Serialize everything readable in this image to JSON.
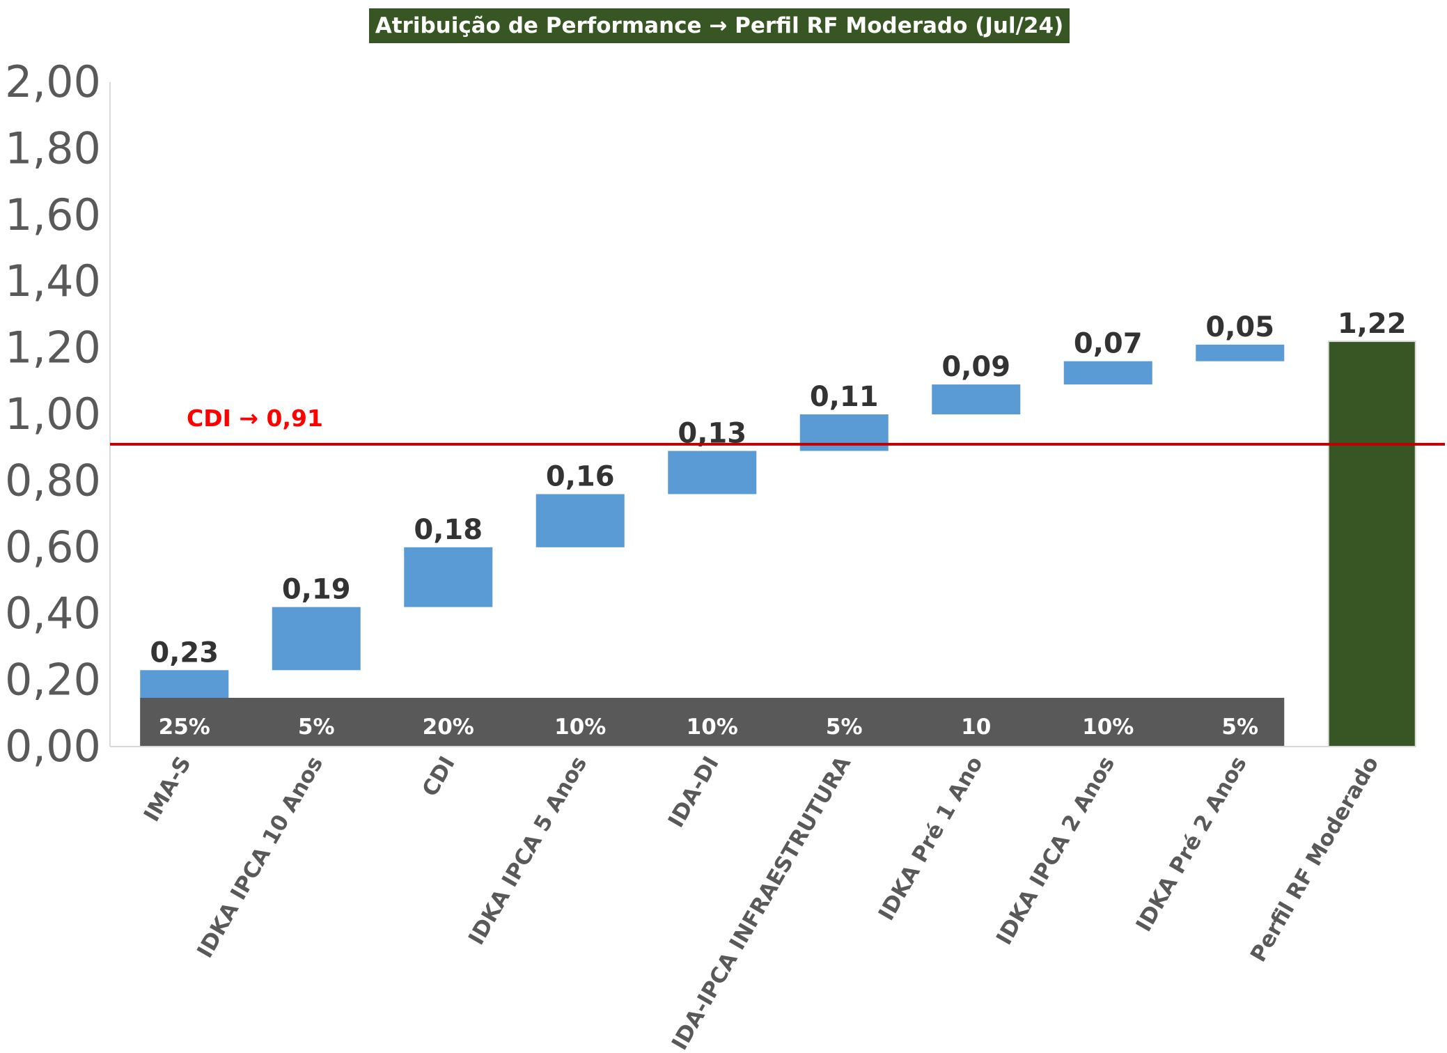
{
  "chart_data": {
    "type": "bar",
    "subtype": "waterfall",
    "title": "Atribuição de Performance → Perfil RF Moderado (Jul/24)",
    "ylim": [
      0,
      2
    ],
    "yticks": [
      "0,00",
      "0,20",
      "0,40",
      "0,60",
      "0,80",
      "1,00",
      "1,20",
      "1,40",
      "1,60",
      "1,80",
      "2,00"
    ],
    "grid": false,
    "categories": [
      "IMA-S",
      "IDKA IPCA 10 Anos",
      "CDI",
      "IDKA IPCA 5 Anos",
      "IDA-DI",
      "IDA-IPCA INFRAESTRUTURA",
      "IDKA Pré 1 Ano",
      "IDKA IPCA 2 Anos",
      "IDKA Pré 2 Anos",
      "Perfil RF Moderado"
    ],
    "values": [
      0.23,
      0.19,
      0.18,
      0.16,
      0.13,
      0.11,
      0.09,
      0.07,
      0.05,
      1.22
    ],
    "value_labels": [
      "0,23",
      "0,19",
      "0,18",
      "0,16",
      "0,13",
      "0,11",
      "0,09",
      "0,07",
      "0,05",
      "1,22"
    ],
    "is_total": [
      false,
      false,
      false,
      false,
      false,
      false,
      false,
      false,
      false,
      true
    ],
    "weights": [
      "25%",
      "5%",
      "20%",
      "10%",
      "10%",
      "5%",
      "10",
      "10%",
      "5%"
    ],
    "reference_line": {
      "label": "CDI → 0,91",
      "value": 0.91
    },
    "colors": {
      "increment": "#5B9BD5",
      "total": "#375623",
      "weights_band": "#595959",
      "reference_line": "#C00000",
      "reference_label": "#FF0000",
      "axis_text": "#595959",
      "value_label": "#333333",
      "category_label": "#595959",
      "title_bg": "#375623",
      "title_text": "#FFFFFF"
    }
  }
}
